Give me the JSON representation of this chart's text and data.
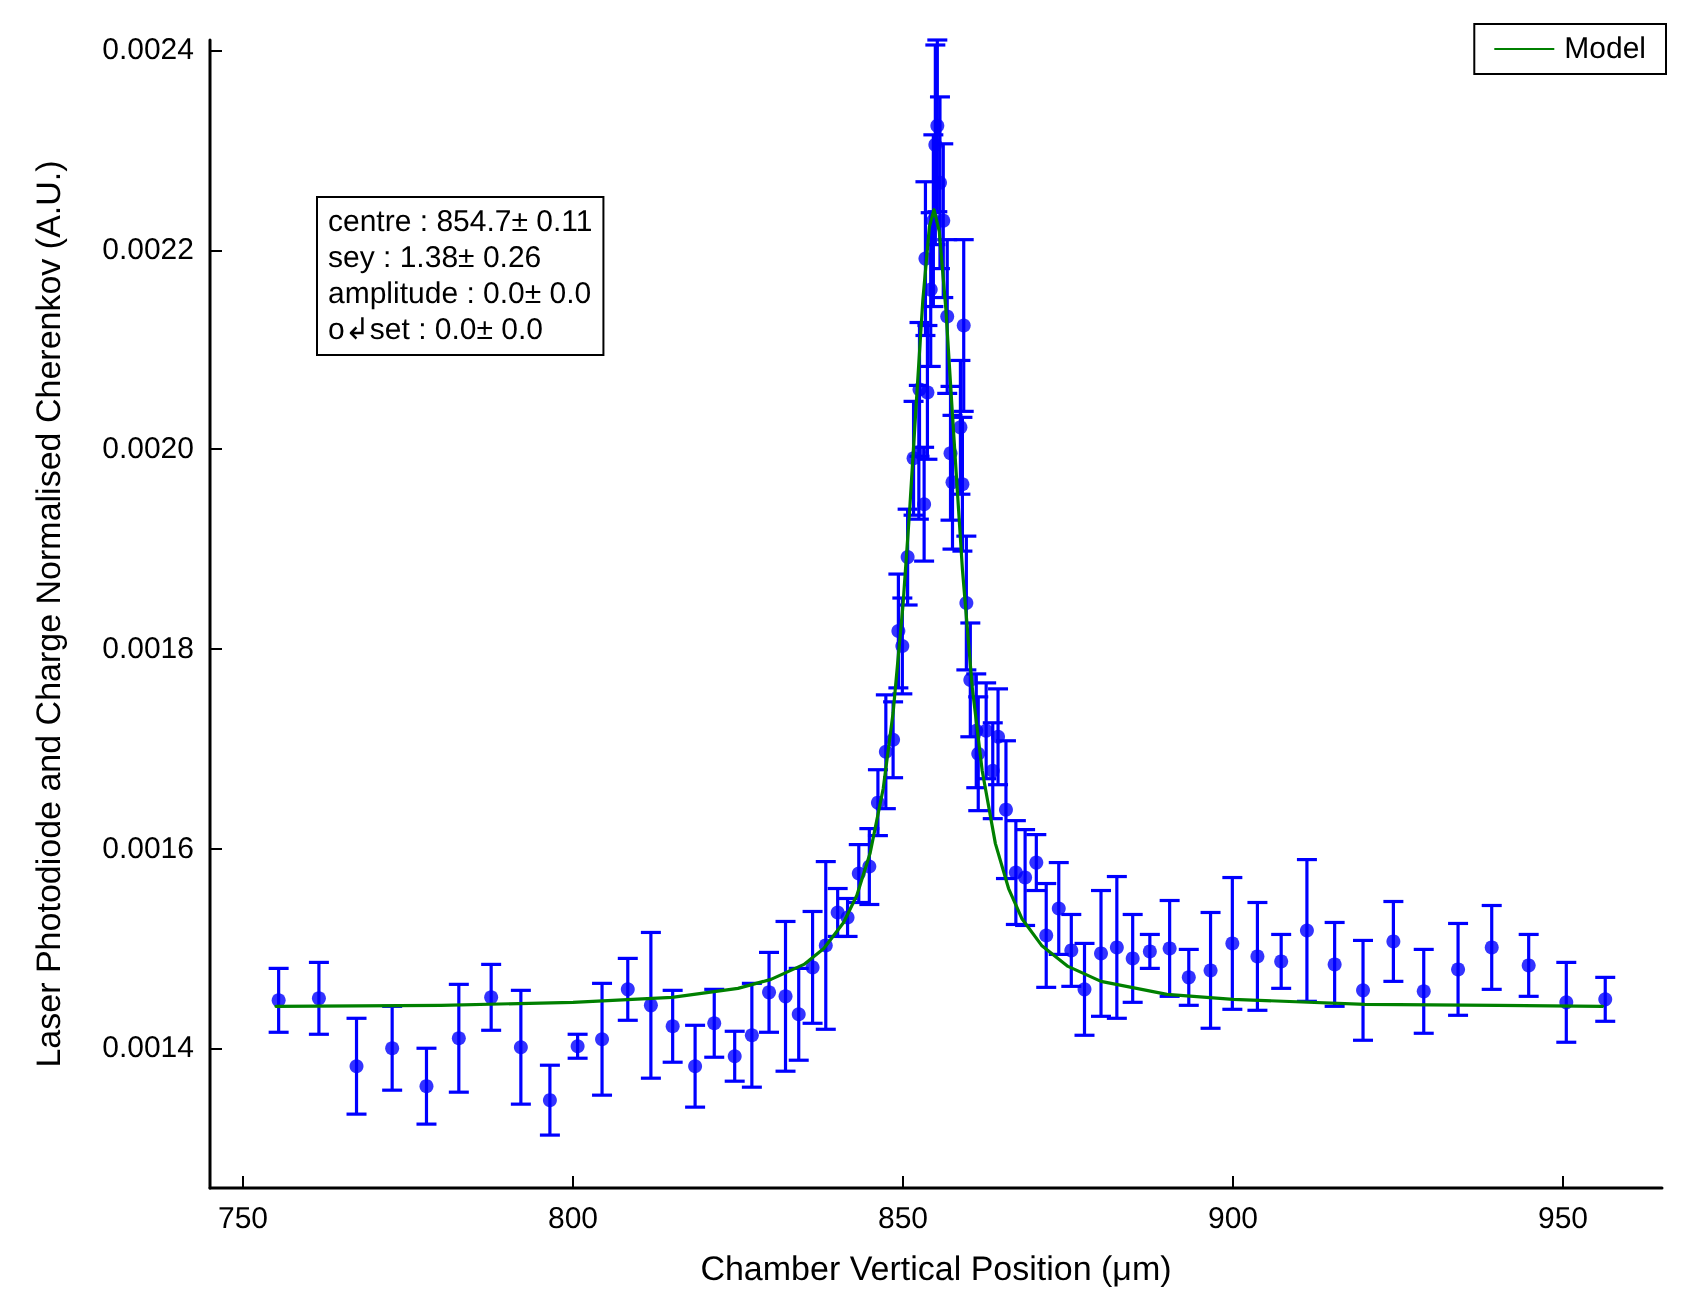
{
  "chart_data": {
    "type": "scatter",
    "xlabel": "Chamber Vertical Position (μm)",
    "ylabel": "Laser Photodiode and Charge Normalised Cherenkov (A.U.)",
    "xlim": [
      745,
      965
    ],
    "ylim": [
      0.00126,
      0.00241
    ],
    "xticks": [
      750,
      800,
      850,
      900,
      950
    ],
    "yticks": [
      0.0014,
      0.0016,
      0.0018,
      {
        "value": 0.002,
        "label": "0.0020"
      },
      0.0022,
      0.0024
    ],
    "grid": false,
    "legend": "top right",
    "annotations": [
      "centre : 854.7± 0.11",
      "sey : 1.38± 0.26",
      "amplitude : 0.0± 0.0",
      "o↲set : 0.0± 0.0"
    ],
    "series": [
      {
        "color": "#0000ff",
        "marker": "circle",
        "x": [
          755.4,
          761.5,
          767.2,
          772.6,
          777.8,
          782.7,
          787.6,
          792.1,
          796.5,
          800.7,
          804.4,
          808.3,
          811.8,
          815.1,
          818.5,
          821.4,
          824.5,
          827.1,
          829.7,
          832.2,
          834.2,
          836.3,
          838.3,
          840.1,
          841.6,
          843.3,
          844.9,
          846.2,
          847.4,
          848.5,
          849.3,
          849.9,
          850.7,
          851.6,
          852.4,
          852.5,
          853.2,
          853.4,
          853.7,
          854.2,
          854.6,
          854.9,
          855.2,
          855.6,
          856.1,
          856.7,
          857.2,
          857.5,
          858.7,
          859,
          859.2,
          859.6,
          860.2,
          861.1,
          861.4,
          862.6,
          863.6,
          864.4,
          865.6,
          867.1,
          868.5,
          870.2,
          871.7,
          873.6,
          875.5,
          877.5,
          880,
          882.4,
          884.8,
          887.4,
          890.4,
          893.3,
          896.6,
          899.9,
          903.7,
          907.3,
          911.2,
          915.4,
          919.7,
          924.3,
          928.9,
          934.1,
          939.2,
          944.8,
          950.5,
          956.4
        ],
        "values": [
          0.001448,
          0.00145,
          0.001382,
          0.0014,
          0.001362,
          0.00141,
          0.001451,
          0.001401,
          0.001348,
          0.001402,
          0.001409,
          0.001459,
          0.001443,
          0.001422,
          0.001382,
          0.001425,
          0.001392,
          0.001413,
          0.001456,
          0.001452,
          0.001434,
          0.001481,
          0.001503,
          0.001536,
          0.001531,
          0.001575,
          0.001582,
          0.001646,
          0.001697,
          0.001709,
          0.001818,
          0.001803,
          0.001892,
          0.001991,
          0.001997,
          0.00206,
          0.001945,
          0.002191,
          0.002057,
          0.00216,
          0.002229,
          0.002305,
          0.002324,
          0.002267,
          0.002229,
          0.002133,
          0.001996,
          0.001967,
          0.002022,
          0.001965,
          0.002124,
          0.001846,
          0.001769,
          0.001718,
          0.001695,
          0.001718,
          0.001678,
          0.001712,
          0.001639,
          0.001576,
          0.001571,
          0.001586,
          0.001513,
          0.00154,
          0.001498,
          0.001459,
          0.001495,
          0.001501,
          0.00149,
          0.001497,
          0.0015,
          0.001471,
          0.001478,
          0.001505,
          0.001492,
          0.001487,
          0.001518,
          0.001484,
          0.001458,
          0.001507,
          0.001457,
          0.001479,
          0.001501,
          0.001483,
          0.001446,
          0.001449
        ],
        "errors": [
          3.2e-05,
          3.6e-05,
          4.8e-05,
          4.2e-05,
          3.8e-05,
          5.4e-05,
          3.3e-05,
          5.7e-05,
          3.5e-05,
          1.2e-05,
          5.6e-05,
          3.1e-05,
          7.3e-05,
          3.6e-05,
          4.1e-05,
          3.4e-05,
          2.5e-05,
          5.2e-05,
          4e-05,
          7.5e-05,
          4.6e-05,
          5.6e-05,
          8.4e-05,
          2.4e-05,
          1.9e-05,
          2.9e-05,
          3.8e-05,
          3.3e-05,
          5.7e-05,
          3.8e-05,
          5.7e-05,
          4.8e-05,
          4.8e-05,
          5.7e-05,
          6.7e-05,
          6.7e-05,
          5.7e-05,
          7.7e-05,
          6.7e-05,
          7.7e-05,
          8.6e-05,
          0.0001,
          8.6e-05,
          8.6e-05,
          7.7e-05,
          7.7e-05,
          6.7e-05,
          6.7e-05,
          6.7e-05,
          6.7e-05,
          8.6e-05,
          6.7e-05,
          5.7e-05,
          5.7e-05,
          5.7e-05,
          4.8e-05,
          4.8e-05,
          4.8e-05,
          6.9e-05,
          5.2e-05,
          4.8e-05,
          2.8e-05,
          5.2e-05,
          4.6e-05,
          3.6e-05,
          4.6e-05,
          6.3e-05,
          7.1e-05,
          4.4e-05,
          1.7e-05,
          4.8e-05,
          2.8e-05,
          5.8e-05,
          6.6e-05,
          5.4e-05,
          2.7e-05,
          7.1e-05,
          4.2e-05,
          5e-05,
          4e-05,
          4.2e-05,
          4.6e-05,
          4.2e-05,
          3.1e-05,
          4e-05,
          2.2e-05
        ]
      },
      {
        "type": "line",
        "name": "Model",
        "color": "#008000",
        "marker": "none",
        "line_style": "solid",
        "x": [
          755,
          780,
          800,
          815,
          825,
          830,
          835,
          838,
          841,
          843,
          845,
          847,
          848.5,
          850,
          851,
          852,
          853,
          854,
          854.7,
          855.5,
          856.5,
          857.5,
          859,
          860.5,
          862,
          864,
          866,
          868,
          871,
          875,
          880,
          890,
          900,
          920,
          940,
          956
        ],
        "values": [
          0.001442,
          0.001443,
          0.001446,
          0.001451,
          0.00146,
          0.001469,
          0.001484,
          0.0015,
          0.001526,
          0.001553,
          0.001595,
          0.00166,
          0.001736,
          0.001844,
          0.001938,
          0.002045,
          0.002149,
          0.002223,
          0.00224,
          0.002218,
          0.00214,
          0.002034,
          0.00188,
          0.001761,
          0.001678,
          0.001605,
          0.00156,
          0.00153,
          0.001503,
          0.001482,
          0.001467,
          0.001454,
          0.001449,
          0.001444,
          0.001443,
          0.001442
        ]
      }
    ]
  }
}
